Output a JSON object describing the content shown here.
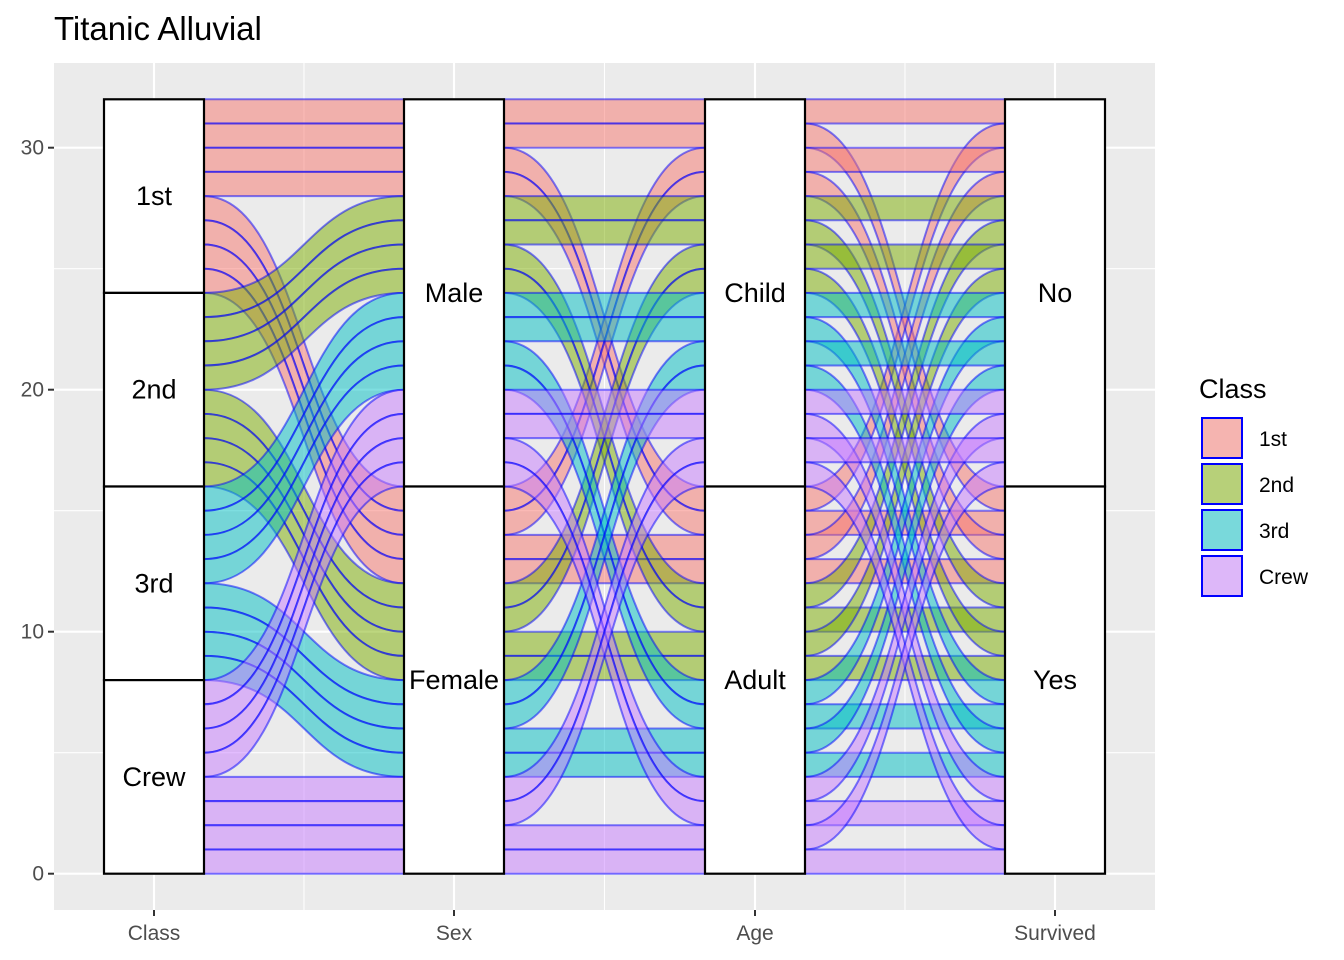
{
  "chart_data": {
    "type": "alluvial",
    "title": "Titanic Alluvial",
    "xlabel": "",
    "ylabel": "",
    "ylim": [
      -1.5,
      33.5
    ],
    "yticks": [
      0,
      10,
      20,
      30
    ],
    "axes": [
      {
        "name": "Class",
        "strata": [
          "1st",
          "2nd",
          "3rd",
          "Crew"
        ]
      },
      {
        "name": "Sex",
        "strata": [
          "Male",
          "Female"
        ]
      },
      {
        "name": "Age",
        "strata": [
          "Child",
          "Adult"
        ]
      },
      {
        "name": "Survived",
        "strata": [
          "No",
          "Yes"
        ]
      }
    ],
    "fill_variable": "Class",
    "legend": {
      "title": "Class",
      "position": "right",
      "items": [
        {
          "name": "1st",
          "color": "#F8766D"
        },
        {
          "name": "2nd",
          "color": "#7CAE00"
        },
        {
          "name": "3rd",
          "color": "#00BFC4"
        },
        {
          "name": "Crew",
          "color": "#C77CFF"
        }
      ]
    },
    "flows": [
      {
        "class": "1st",
        "sex": "Male",
        "age": "Child",
        "survived": "No",
        "freq": 1
      },
      {
        "class": "1st",
        "sex": "Male",
        "age": "Child",
        "survived": "Yes",
        "freq": 1
      },
      {
        "class": "1st",
        "sex": "Male",
        "age": "Adult",
        "survived": "No",
        "freq": 1
      },
      {
        "class": "1st",
        "sex": "Male",
        "age": "Adult",
        "survived": "Yes",
        "freq": 1
      },
      {
        "class": "1st",
        "sex": "Female",
        "age": "Child",
        "survived": "No",
        "freq": 1
      },
      {
        "class": "1st",
        "sex": "Female",
        "age": "Child",
        "survived": "Yes",
        "freq": 1
      },
      {
        "class": "1st",
        "sex": "Female",
        "age": "Adult",
        "survived": "No",
        "freq": 1
      },
      {
        "class": "1st",
        "sex": "Female",
        "age": "Adult",
        "survived": "Yes",
        "freq": 1
      },
      {
        "class": "2nd",
        "sex": "Male",
        "age": "Child",
        "survived": "No",
        "freq": 1
      },
      {
        "class": "2nd",
        "sex": "Male",
        "age": "Child",
        "survived": "Yes",
        "freq": 1
      },
      {
        "class": "2nd",
        "sex": "Male",
        "age": "Adult",
        "survived": "No",
        "freq": 1
      },
      {
        "class": "2nd",
        "sex": "Male",
        "age": "Adult",
        "survived": "Yes",
        "freq": 1
      },
      {
        "class": "2nd",
        "sex": "Female",
        "age": "Child",
        "survived": "No",
        "freq": 1
      },
      {
        "class": "2nd",
        "sex": "Female",
        "age": "Child",
        "survived": "Yes",
        "freq": 1
      },
      {
        "class": "2nd",
        "sex": "Female",
        "age": "Adult",
        "survived": "No",
        "freq": 1
      },
      {
        "class": "2nd",
        "sex": "Female",
        "age": "Adult",
        "survived": "Yes",
        "freq": 1
      },
      {
        "class": "3rd",
        "sex": "Male",
        "age": "Child",
        "survived": "No",
        "freq": 1
      },
      {
        "class": "3rd",
        "sex": "Male",
        "age": "Child",
        "survived": "Yes",
        "freq": 1
      },
      {
        "class": "3rd",
        "sex": "Male",
        "age": "Adult",
        "survived": "No",
        "freq": 1
      },
      {
        "class": "3rd",
        "sex": "Male",
        "age": "Adult",
        "survived": "Yes",
        "freq": 1
      },
      {
        "class": "3rd",
        "sex": "Female",
        "age": "Child",
        "survived": "No",
        "freq": 1
      },
      {
        "class": "3rd",
        "sex": "Female",
        "age": "Child",
        "survived": "Yes",
        "freq": 1
      },
      {
        "class": "3rd",
        "sex": "Female",
        "age": "Adult",
        "survived": "No",
        "freq": 1
      },
      {
        "class": "3rd",
        "sex": "Female",
        "age": "Adult",
        "survived": "Yes",
        "freq": 1
      },
      {
        "class": "Crew",
        "sex": "Male",
        "age": "Child",
        "survived": "No",
        "freq": 1
      },
      {
        "class": "Crew",
        "sex": "Male",
        "age": "Child",
        "survived": "Yes",
        "freq": 1
      },
      {
        "class": "Crew",
        "sex": "Male",
        "age": "Adult",
        "survived": "No",
        "freq": 1
      },
      {
        "class": "Crew",
        "sex": "Male",
        "age": "Adult",
        "survived": "Yes",
        "freq": 1
      },
      {
        "class": "Crew",
        "sex": "Female",
        "age": "Child",
        "survived": "No",
        "freq": 1
      },
      {
        "class": "Crew",
        "sex": "Female",
        "age": "Child",
        "survived": "Yes",
        "freq": 1
      },
      {
        "class": "Crew",
        "sex": "Female",
        "age": "Adult",
        "survived": "No",
        "freq": 1
      },
      {
        "class": "Crew",
        "sex": "Female",
        "age": "Adult",
        "survived": "Yes",
        "freq": 1
      }
    ]
  }
}
